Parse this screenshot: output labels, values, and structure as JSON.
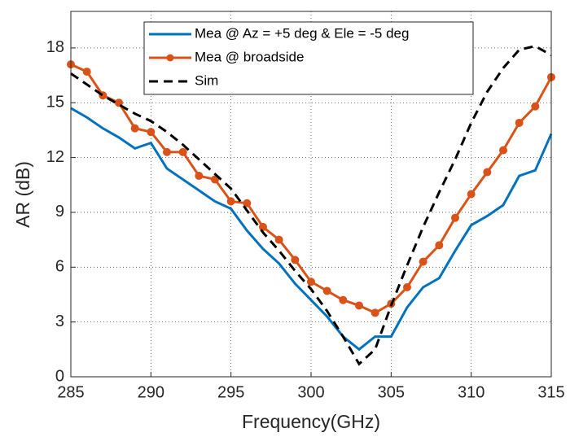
{
  "chart_data": {
    "type": "line",
    "xlabel": "Frequency(GHz)",
    "ylabel": "AR (dB)",
    "x": [
      285,
      286,
      287,
      288,
      289,
      290,
      291,
      292,
      293,
      294,
      295,
      296,
      297,
      298,
      299,
      300,
      301,
      302,
      303,
      304,
      305,
      306,
      307,
      308,
      309,
      310,
      311,
      312,
      313,
      314,
      315
    ],
    "series": [
      {
        "name": "Mea @ Az = +5 deg & Ele = -5 deg",
        "color": "#0072bd",
        "line_style": "solid",
        "marker": "none",
        "values": [
          14.7,
          14.2,
          13.6,
          13.1,
          12.5,
          12.8,
          11.4,
          10.8,
          10.2,
          9.6,
          9.2,
          8.0,
          7.0,
          6.2,
          5.1,
          4.2,
          3.3,
          2.2,
          1.5,
          2.2,
          2.2,
          3.8,
          4.9,
          5.4,
          6.9,
          8.3,
          8.8,
          9.4,
          11.0,
          11.3,
          13.3
        ]
      },
      {
        "name": "Mea @ broadside",
        "color": "#d95319",
        "line_style": "solid",
        "marker": "circle",
        "values": [
          17.1,
          16.7,
          15.4,
          15.0,
          13.6,
          13.4,
          12.3,
          12.3,
          11.0,
          10.8,
          9.6,
          9.5,
          8.2,
          7.5,
          6.4,
          5.2,
          4.7,
          4.2,
          3.9,
          3.5,
          4.0,
          4.9,
          6.3,
          7.2,
          8.7,
          10.0,
          11.2,
          12.4,
          13.9,
          14.8,
          16.4
        ]
      },
      {
        "name": "Sim",
        "color": "#000000",
        "line_style": "dashed",
        "marker": "none",
        "values": [
          16.6,
          16.0,
          15.4,
          14.9,
          14.4,
          14.0,
          13.4,
          12.7,
          11.9,
          11.1,
          10.3,
          9.1,
          7.9,
          6.9,
          5.8,
          4.8,
          3.6,
          2.2,
          0.7,
          1.5,
          3.9,
          6.1,
          8.2,
          10.1,
          11.9,
          13.9,
          15.6,
          16.9,
          17.9,
          18.1,
          17.6
        ]
      }
    ],
    "xlim": [
      285,
      315
    ],
    "xticks": [
      285,
      290,
      295,
      300,
      305,
      310,
      315
    ],
    "ylim": [
      0,
      20
    ],
    "yticks": [
      0,
      3,
      6,
      9,
      12,
      15,
      18
    ],
    "grid": true,
    "legend": "top"
  }
}
